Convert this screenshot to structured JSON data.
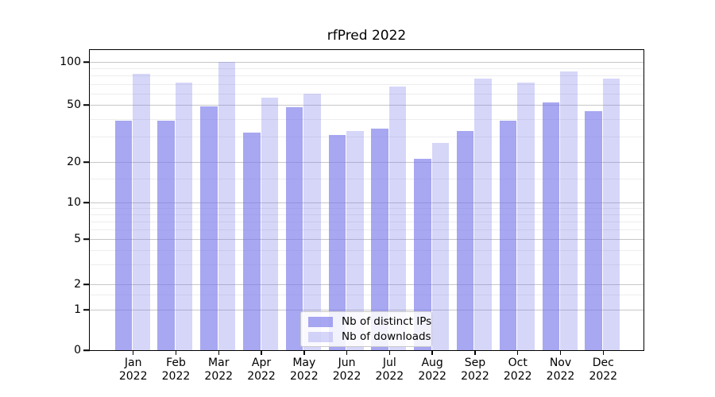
{
  "title": "rfPred 2022",
  "colors": {
    "series": [
      "rgba(120,120,235,0.65)",
      "rgba(120,120,235,0.30)"
    ],
    "base_accent": "#7878eb",
    "grid_major": "#c7c7c7",
    "grid_minor": "#ededed"
  },
  "legend": {
    "items": [
      {
        "label": "Nb of distinct IPs"
      },
      {
        "label": "Nb of downloads"
      }
    ]
  },
  "y_axis": {
    "tick_labels": [
      "100",
      "50",
      "20",
      "10",
      "5",
      "2",
      "1",
      "0"
    ]
  },
  "x_axis": {
    "months": [
      "Jan",
      "Feb",
      "Mar",
      "Apr",
      "May",
      "Jun",
      "Jul",
      "Aug",
      "Sep",
      "Oct",
      "Nov",
      "Dec"
    ],
    "year": "2022"
  },
  "chart_data": {
    "type": "bar",
    "title": "rfPred 2022",
    "categories": [
      "Jan 2022",
      "Feb 2022",
      "Mar 2022",
      "Apr 2022",
      "May 2022",
      "Jun 2022",
      "Jul 2022",
      "Aug 2022",
      "Sep 2022",
      "Oct 2022",
      "Nov 2022",
      "Dec 2022"
    ],
    "series": [
      {
        "name": "Nb of distinct IPs",
        "values": [
          39,
          39,
          49,
          32,
          48,
          31,
          34,
          21,
          33,
          39,
          52,
          45
        ]
      },
      {
        "name": "Nb of downloads",
        "values": [
          82,
          72,
          100,
          56,
          60,
          33,
          67,
          27,
          76,
          72,
          86,
          76
        ]
      }
    ],
    "xlabel": "",
    "ylabel": "",
    "yscale": "log-like (symlog with 0 baseline)",
    "yticks": [
      0,
      1,
      2,
      5,
      10,
      20,
      50,
      100
    ],
    "ylim": [
      0,
      105
    ],
    "grid": true,
    "legend_position": "lower center"
  }
}
